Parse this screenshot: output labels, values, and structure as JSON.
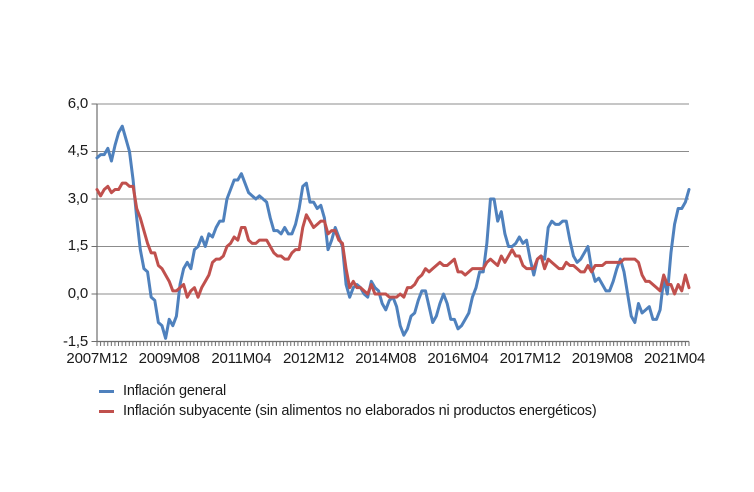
{
  "chart_data": {
    "type": "line",
    "title": "",
    "xlabel": "",
    "ylabel": "",
    "x_start": "2007M12",
    "x_end": "2021M08",
    "x_step_months": 1,
    "x_tick_every": 20,
    "x_tick_labels": [
      "2007M12",
      "2009M08",
      "2011M04",
      "2012M12",
      "2014M08",
      "2016M04",
      "2017M12",
      "2019M08",
      "2021M04"
    ],
    "x_tick_indices": [
      0,
      20,
      40,
      60,
      80,
      100,
      120,
      140,
      160
    ],
    "y_ticks": [
      6.0,
      4.5,
      3.0,
      1.5,
      0.0,
      -1.5
    ],
    "y_tick_labels": [
      "6,0",
      "4,5",
      "3,0",
      "1,5",
      "0,0",
      "-1,5"
    ],
    "ylim": [
      -1.5,
      6.0
    ],
    "grid": "horizontal",
    "legend_position": "bottom-left",
    "colors": {
      "gridline": "#8C8C8C",
      "axis": "#6E6E6E",
      "text": "#1a1a1a",
      "background": "#ffffff"
    },
    "series": [
      {
        "name": "Inflación general",
        "color": "#4F81BD",
        "values": [
          4.3,
          4.4,
          4.4,
          4.6,
          4.2,
          4.7,
          5.1,
          5.3,
          4.9,
          4.5,
          3.6,
          2.4,
          1.4,
          0.8,
          0.7,
          -0.1,
          -0.2,
          -0.9,
          -1.0,
          -1.4,
          -0.8,
          -1.0,
          -0.7,
          0.3,
          0.8,
          1.0,
          0.8,
          1.4,
          1.5,
          1.8,
          1.5,
          1.9,
          1.8,
          2.1,
          2.3,
          2.3,
          3.0,
          3.3,
          3.6,
          3.6,
          3.8,
          3.5,
          3.2,
          3.1,
          3.0,
          3.1,
          3.0,
          2.9,
          2.4,
          2.0,
          2.0,
          1.9,
          2.1,
          1.9,
          1.9,
          2.2,
          2.7,
          3.4,
          3.5,
          2.9,
          2.9,
          2.7,
          2.8,
          2.4,
          1.4,
          1.7,
          2.1,
          1.8,
          1.5,
          0.3,
          -0.1,
          0.2,
          0.3,
          0.2,
          0.0,
          -0.1,
          0.4,
          0.2,
          0.1,
          -0.3,
          -0.5,
          -0.2,
          -0.1,
          -0.4,
          -1.0,
          -1.3,
          -1.1,
          -0.7,
          -0.6,
          -0.2,
          0.1,
          0.1,
          -0.4,
          -0.9,
          -0.7,
          -0.3,
          0.0,
          -0.3,
          -0.8,
          -0.8,
          -1.1,
          -1.0,
          -0.8,
          -0.6,
          -0.1,
          0.2,
          0.7,
          0.7,
          1.6,
          3.0,
          3.0,
          2.3,
          2.6,
          1.9,
          1.5,
          1.5,
          1.6,
          1.8,
          1.6,
          1.7,
          1.1,
          0.6,
          1.1,
          1.2,
          1.1,
          2.1,
          2.3,
          2.2,
          2.2,
          2.3,
          2.3,
          1.7,
          1.2,
          1.0,
          1.1,
          1.3,
          1.5,
          0.8,
          0.4,
          0.5,
          0.3,
          0.1,
          0.1,
          0.4,
          0.8,
          1.1,
          0.7,
          0.0,
          -0.7,
          -0.9,
          -0.3,
          -0.6,
          -0.5,
          -0.4,
          -0.8,
          -0.8,
          -0.5,
          0.5,
          0.0,
          1.3,
          2.2,
          2.7,
          2.7,
          2.9,
          3.3
        ]
      },
      {
        "name": "Inflación subyacente (sin alimentos no elaborados ni productos energéticos)",
        "color": "#C0504D",
        "values": [
          3.3,
          3.1,
          3.3,
          3.4,
          3.2,
          3.3,
          3.3,
          3.5,
          3.5,
          3.4,
          3.4,
          2.7,
          2.4,
          2.0,
          1.6,
          1.3,
          1.3,
          0.9,
          0.8,
          0.6,
          0.4,
          0.1,
          0.1,
          0.2,
          0.3,
          -0.1,
          0.1,
          0.2,
          -0.1,
          0.2,
          0.4,
          0.6,
          1.0,
          1.1,
          1.1,
          1.2,
          1.5,
          1.6,
          1.8,
          1.7,
          2.1,
          2.1,
          1.7,
          1.6,
          1.6,
          1.7,
          1.7,
          1.7,
          1.5,
          1.3,
          1.2,
          1.2,
          1.1,
          1.1,
          1.3,
          1.4,
          1.4,
          2.1,
          2.5,
          2.3,
          2.1,
          2.2,
          2.3,
          2.3,
          1.9,
          2.0,
          2.0,
          1.7,
          1.6,
          0.8,
          0.2,
          0.4,
          0.2,
          0.2,
          0.1,
          0.0,
          0.3,
          0.0,
          0.0,
          0.0,
          0.0,
          -0.1,
          -0.1,
          -0.1,
          0.0,
          -0.1,
          0.2,
          0.2,
          0.3,
          0.5,
          0.6,
          0.8,
          0.7,
          0.8,
          0.9,
          1.0,
          0.9,
          0.9,
          1.0,
          1.1,
          0.7,
          0.7,
          0.6,
          0.7,
          0.8,
          0.8,
          0.8,
          0.8,
          1.0,
          1.1,
          1.0,
          0.9,
          1.2,
          1.0,
          1.2,
          1.4,
          1.2,
          1.2,
          0.9,
          0.8,
          0.8,
          0.8,
          1.1,
          1.2,
          0.8,
          1.1,
          1.0,
          0.9,
          0.8,
          0.8,
          1.0,
          0.9,
          0.9,
          0.8,
          0.7,
          0.7,
          0.9,
          0.7,
          0.9,
          0.9,
          0.9,
          1.0,
          1.0,
          1.0,
          1.0,
          1.0,
          1.1,
          1.1,
          1.1,
          1.1,
          1.0,
          0.6,
          0.4,
          0.4,
          0.3,
          0.2,
          0.1,
          0.6,
          0.3,
          0.3,
          0.0,
          0.3,
          0.1,
          0.6,
          0.2
        ]
      }
    ]
  }
}
